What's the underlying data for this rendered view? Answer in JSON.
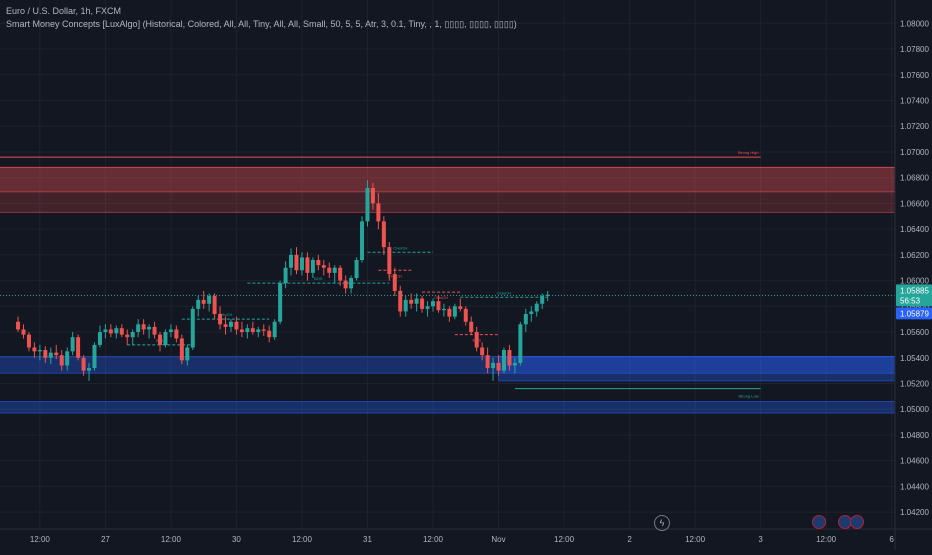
{
  "legend": {
    "symbol_line": "Euro / U.S. Dollar, 1h, FXCM",
    "indicator_line": "Smart Money Concepts [LuxAlgo] (Historical, Colored, All, All, Tiny, All, All, Small, 50, 5, 5, Atr, 3, 0.1, Tiny, , 1, ▯▯▯▯, ▯▯▯▯, ▯▯▯▯)"
  },
  "price_badges": {
    "last_price": "1.05885",
    "countdown": "56:53",
    "prev_close": "1.05879"
  },
  "colors": {
    "background": "#131722",
    "grid": "#1e222d",
    "up": "#26a69a",
    "down": "#ef5350",
    "text": "#b2b5be",
    "supply_zone": "#ef5350",
    "demand_zone": "#2962ff",
    "accent_blue": "#2962ff"
  },
  "footer_icons": [
    "lightning-icon",
    "currency-icon",
    "flag-icon",
    "flag-icon"
  ],
  "chart_data": {
    "type": "candlestick",
    "y_axis_side": "right",
    "ylim": [
      1.041,
      1.0815
    ],
    "y_ticks": [
      "1.08000",
      "1.07800",
      "1.07600",
      "1.07400",
      "1.07200",
      "1.07000",
      "1.06800",
      "1.06600",
      "1.06400",
      "1.06200",
      "1.06000",
      "1.05800",
      "1.05600",
      "1.05400",
      "1.05200",
      "1.05000",
      "1.04800",
      "1.04600",
      "1.04400",
      "1.04200"
    ],
    "x_tick_labels": [
      "12:00",
      "27",
      "12:00",
      "30",
      "12:00",
      "31",
      "12:00",
      "Nov",
      "12:00",
      "2",
      "12:00",
      "3",
      "12:00",
      "6"
    ],
    "x_tick_hours": [
      -72,
      -60,
      -48,
      -36,
      -24,
      -12,
      0,
      12,
      24,
      36,
      48,
      60,
      72,
      84
    ],
    "last_candle_hour": 21,
    "candles_hourly_ohlc_from_hour_minus_86": [
      [
        1.0568,
        1.0572,
        1.056,
        1.0562
      ],
      [
        1.0562,
        1.0566,
        1.0555,
        1.0558
      ],
      [
        1.0558,
        1.056,
        1.0545,
        1.0548
      ],
      [
        1.0548,
        1.0552,
        1.054,
        1.0545
      ],
      [
        1.0545,
        1.055,
        1.0538,
        1.0546
      ],
      [
        1.0546,
        1.0549,
        1.0536,
        1.054
      ],
      [
        1.054,
        1.0548,
        1.0535,
        1.0544
      ],
      [
        1.0544,
        1.055,
        1.0539,
        1.0542
      ],
      [
        1.0542,
        1.0546,
        1.053,
        1.0534
      ],
      [
        1.0534,
        1.0548,
        1.053,
        1.0545
      ],
      [
        1.0545,
        1.056,
        1.0542,
        1.0556
      ],
      [
        1.0556,
        1.0558,
        1.0538,
        1.054
      ],
      [
        1.054,
        1.0542,
        1.0526,
        1.053
      ],
      [
        1.053,
        1.0536,
        1.0522,
        1.0532
      ],
      [
        1.0532,
        1.0552,
        1.053,
        1.055
      ],
      [
        1.055,
        1.0565,
        1.0548,
        1.056
      ],
      [
        1.056,
        1.0566,
        1.0555,
        1.0562
      ],
      [
        1.0562,
        1.0566,
        1.0556,
        1.0559
      ],
      [
        1.0559,
        1.0565,
        1.0555,
        1.0563
      ],
      [
        1.0563,
        1.0566,
        1.0556,
        1.0558
      ],
      [
        1.0558,
        1.0562,
        1.055,
        1.0556
      ],
      [
        1.0556,
        1.0562,
        1.055,
        1.056
      ],
      [
        1.056,
        1.057,
        1.0556,
        1.0566
      ],
      [
        1.0566,
        1.057,
        1.0558,
        1.0562
      ],
      [
        1.0562,
        1.0566,
        1.0555,
        1.0564
      ],
      [
        1.0564,
        1.0568,
        1.0555,
        1.0558
      ],
      [
        1.0558,
        1.056,
        1.0545,
        1.055
      ],
      [
        1.055,
        1.0562,
        1.0548,
        1.056
      ],
      [
        1.056,
        1.0566,
        1.0556,
        1.0562
      ],
      [
        1.0562,
        1.0565,
        1.0552,
        1.0555
      ],
      [
        1.0555,
        1.0558,
        1.0535,
        1.0538
      ],
      [
        1.0538,
        1.055,
        1.0534,
        1.0548
      ],
      [
        1.0548,
        1.058,
        1.0546,
        1.0578
      ],
      [
        1.0578,
        1.0588,
        1.0572,
        1.0585
      ],
      [
        1.0585,
        1.0592,
        1.0578,
        1.0582
      ],
      [
        1.0582,
        1.059,
        1.0576,
        1.0588
      ],
      [
        1.0588,
        1.059,
        1.057,
        1.0574
      ],
      [
        1.0574,
        1.058,
        1.0562,
        1.0566
      ],
      [
        1.0566,
        1.0572,
        1.0558,
        1.0564
      ],
      [
        1.0564,
        1.057,
        1.056,
        1.0568
      ],
      [
        1.0568,
        1.0572,
        1.0558,
        1.0562
      ],
      [
        1.0562,
        1.0568,
        1.0556,
        1.056
      ],
      [
        1.056,
        1.0566,
        1.0555,
        1.0563
      ],
      [
        1.0563,
        1.0568,
        1.0558,
        1.056
      ],
      [
        1.056,
        1.0564,
        1.0556,
        1.0562
      ],
      [
        1.0562,
        1.0566,
        1.0557,
        1.0561
      ],
      [
        1.0561,
        1.0565,
        1.0552,
        1.0556
      ],
      [
        1.0556,
        1.057,
        1.0554,
        1.0568
      ],
      [
        1.0568,
        1.06,
        1.0566,
        1.0598
      ],
      [
        1.0598,
        1.0615,
        1.0594,
        1.061
      ],
      [
        1.061,
        1.0625,
        1.0604,
        1.062
      ],
      [
        1.062,
        1.0626,
        1.0605,
        1.0608
      ],
      [
        1.0608,
        1.0622,
        1.0604,
        1.0618
      ],
      [
        1.0618,
        1.0622,
        1.06,
        1.0606
      ],
      [
        1.0606,
        1.0618,
        1.0602,
        1.0616
      ],
      [
        1.0616,
        1.062,
        1.0608,
        1.0612
      ],
      [
        1.0612,
        1.0616,
        1.0604,
        1.061
      ],
      [
        1.061,
        1.0614,
        1.0602,
        1.0606
      ],
      [
        1.0606,
        1.0612,
        1.0598,
        1.061
      ],
      [
        1.061,
        1.0612,
        1.0596,
        1.06
      ],
      [
        1.06,
        1.0604,
        1.059,
        1.0594
      ],
      [
        1.0594,
        1.0604,
        1.059,
        1.0602
      ],
      [
        1.0602,
        1.0618,
        1.06,
        1.0616
      ],
      [
        1.0616,
        1.065,
        1.0614,
        1.0646
      ],
      [
        1.0646,
        1.0678,
        1.0642,
        1.0672
      ],
      [
        1.0672,
        1.0676,
        1.0655,
        1.066
      ],
      [
        1.066,
        1.0668,
        1.064,
        1.0646
      ],
      [
        1.0646,
        1.065,
        1.062,
        1.0626
      ],
      [
        1.0626,
        1.063,
        1.06,
        1.0605
      ],
      [
        1.0605,
        1.061,
        1.0588,
        1.0592
      ],
      [
        1.0592,
        1.0596,
        1.0572,
        1.0576
      ],
      [
        1.0576,
        1.0588,
        1.0572,
        1.0585
      ],
      [
        1.0585,
        1.059,
        1.0578,
        1.0582
      ],
      [
        1.0582,
        1.059,
        1.0576,
        1.0586
      ],
      [
        1.0586,
        1.0588,
        1.0575,
        1.0578
      ],
      [
        1.0578,
        1.0584,
        1.0572,
        1.058
      ],
      [
        1.058,
        1.0586,
        1.0576,
        1.0584
      ],
      [
        1.0584,
        1.0588,
        1.0575,
        1.0577
      ],
      [
        1.0577,
        1.0582,
        1.0572,
        1.0578
      ],
      [
        1.0578,
        1.058,
        1.0568,
        1.0572
      ],
      [
        1.0572,
        1.0582,
        1.057,
        1.058
      ],
      [
        1.058,
        1.0586,
        1.0576,
        1.0578
      ],
      [
        1.0578,
        1.058,
        1.0565,
        1.0568
      ],
      [
        1.0568,
        1.0572,
        1.0558,
        1.056
      ],
      [
        1.056,
        1.0564,
        1.0545,
        1.0548
      ],
      [
        1.0548,
        1.0552,
        1.0538,
        1.0542
      ],
      [
        1.0542,
        1.0548,
        1.0528,
        1.0532
      ],
      [
        1.0532,
        1.054,
        1.0522,
        1.0536
      ],
      [
        1.0536,
        1.0542,
        1.0526,
        1.053
      ],
      [
        1.053,
        1.0548,
        1.0528,
        1.0546
      ],
      [
        1.0546,
        1.055,
        1.053,
        1.0534
      ],
      [
        1.0534,
        1.054,
        1.0528,
        1.0536
      ],
      [
        1.0536,
        1.0568,
        1.0534,
        1.0566
      ],
      [
        1.0566,
        1.0578,
        1.056,
        1.0574
      ],
      [
        1.0574,
        1.058,
        1.0568,
        1.0576
      ],
      [
        1.0576,
        1.0584,
        1.0572,
        1.0582
      ],
      [
        1.0582,
        1.059,
        1.0578,
        1.0588
      ],
      [
        1.0588,
        1.0592,
        1.0584,
        1.0589
      ]
    ],
    "zones": [
      {
        "kind": "supply",
        "top": 1.0688,
        "bottom": 1.0653,
        "from_hour": -86,
        "to_hour": "right-edge"
      },
      {
        "kind": "supply",
        "top": 1.0688,
        "bottom": 1.0669,
        "from_hour": -86,
        "to_hour": "right-edge"
      },
      {
        "kind": "demand",
        "top": 1.0541,
        "bottom": 1.0528,
        "from_hour": -86,
        "to_hour": "right-edge"
      },
      {
        "kind": "demand",
        "top": 1.0541,
        "bottom": 1.0522,
        "from_hour": 12,
        "to_hour": "right-edge"
      },
      {
        "kind": "demand",
        "top": 1.0506,
        "bottom": 1.0497,
        "from_hour": -86,
        "to_hour": "right-edge"
      }
    ],
    "levels": [
      {
        "label": "Strong High",
        "price": 1.0696,
        "from_hour": -86,
        "to_hour": 60,
        "color": "down"
      },
      {
        "label": "Strong Low",
        "price": 1.0516,
        "from_hour": 15,
        "to_hour": 60,
        "color": "up"
      }
    ],
    "structure_breaks": [
      {
        "label": "CHoCH",
        "price": 1.057,
        "from_hour": -46,
        "to_hour": -30,
        "color": "up"
      },
      {
        "label": "EQL",
        "price": 1.055,
        "from_hour": -56,
        "to_hour": -44,
        "color": "up"
      },
      {
        "label": "BOS",
        "price": 1.0598,
        "from_hour": -34,
        "to_hour": -8,
        "color": "up"
      },
      {
        "label": "CHoCH",
        "price": 1.0622,
        "from_hour": -12,
        "to_hour": 0,
        "color": "up"
      },
      {
        "label": "CHoCH",
        "price": 1.0608,
        "from_hour": -10,
        "to_hour": -4,
        "color": "down"
      },
      {
        "label": "CHoCH",
        "price": 1.0591,
        "from_hour": -2,
        "to_hour": 5,
        "color": "down"
      },
      {
        "label": "CHoCH",
        "price": 1.0587,
        "from_hour": 5,
        "to_hour": 21,
        "color": "up"
      },
      {
        "label": "BOS",
        "price": 1.0558,
        "from_hour": 4,
        "to_hour": 12,
        "color": "down"
      }
    ]
  }
}
